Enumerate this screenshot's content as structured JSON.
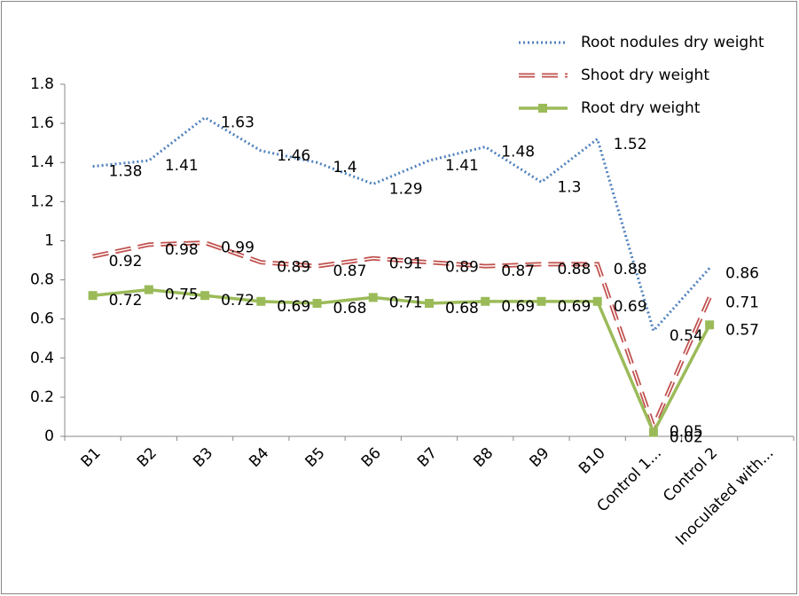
{
  "chart_data": {
    "type": "line",
    "categories": [
      "B1",
      "B2",
      "B3",
      "B4",
      "B5",
      "B6",
      "B7",
      "B8",
      "B9",
      "B10",
      "Control 1...",
      "Control 2",
      "Inoculated with..."
    ],
    "series": [
      {
        "name": "Root nodules dry weight",
        "color": "#4f81bd",
        "style": "dotted",
        "values": [
          1.38,
          1.41,
          1.63,
          1.46,
          1.4,
          1.29,
          1.41,
          1.48,
          1.3,
          1.52,
          0.54,
          0.86,
          null
        ]
      },
      {
        "name": "Shoot dry weight",
        "color": "#c0504d",
        "style": "double-dashed",
        "values": [
          0.92,
          0.98,
          0.99,
          0.89,
          0.87,
          0.91,
          0.89,
          0.87,
          0.88,
          0.88,
          0.05,
          0.71,
          null
        ]
      },
      {
        "name": "Root dry weight",
        "color": "#9bbb59",
        "style": "solid-square",
        "values": [
          0.72,
          0.75,
          0.72,
          0.69,
          0.68,
          0.71,
          0.68,
          0.69,
          0.69,
          0.69,
          0.02,
          0.57,
          null
        ]
      }
    ],
    "ylim": [
      0,
      1.8
    ],
    "yticks": [
      0,
      0.2,
      0.4,
      0.6,
      0.8,
      1,
      1.2,
      1.4,
      1.6,
      1.8
    ],
    "grid": false,
    "legend": "top-right"
  }
}
